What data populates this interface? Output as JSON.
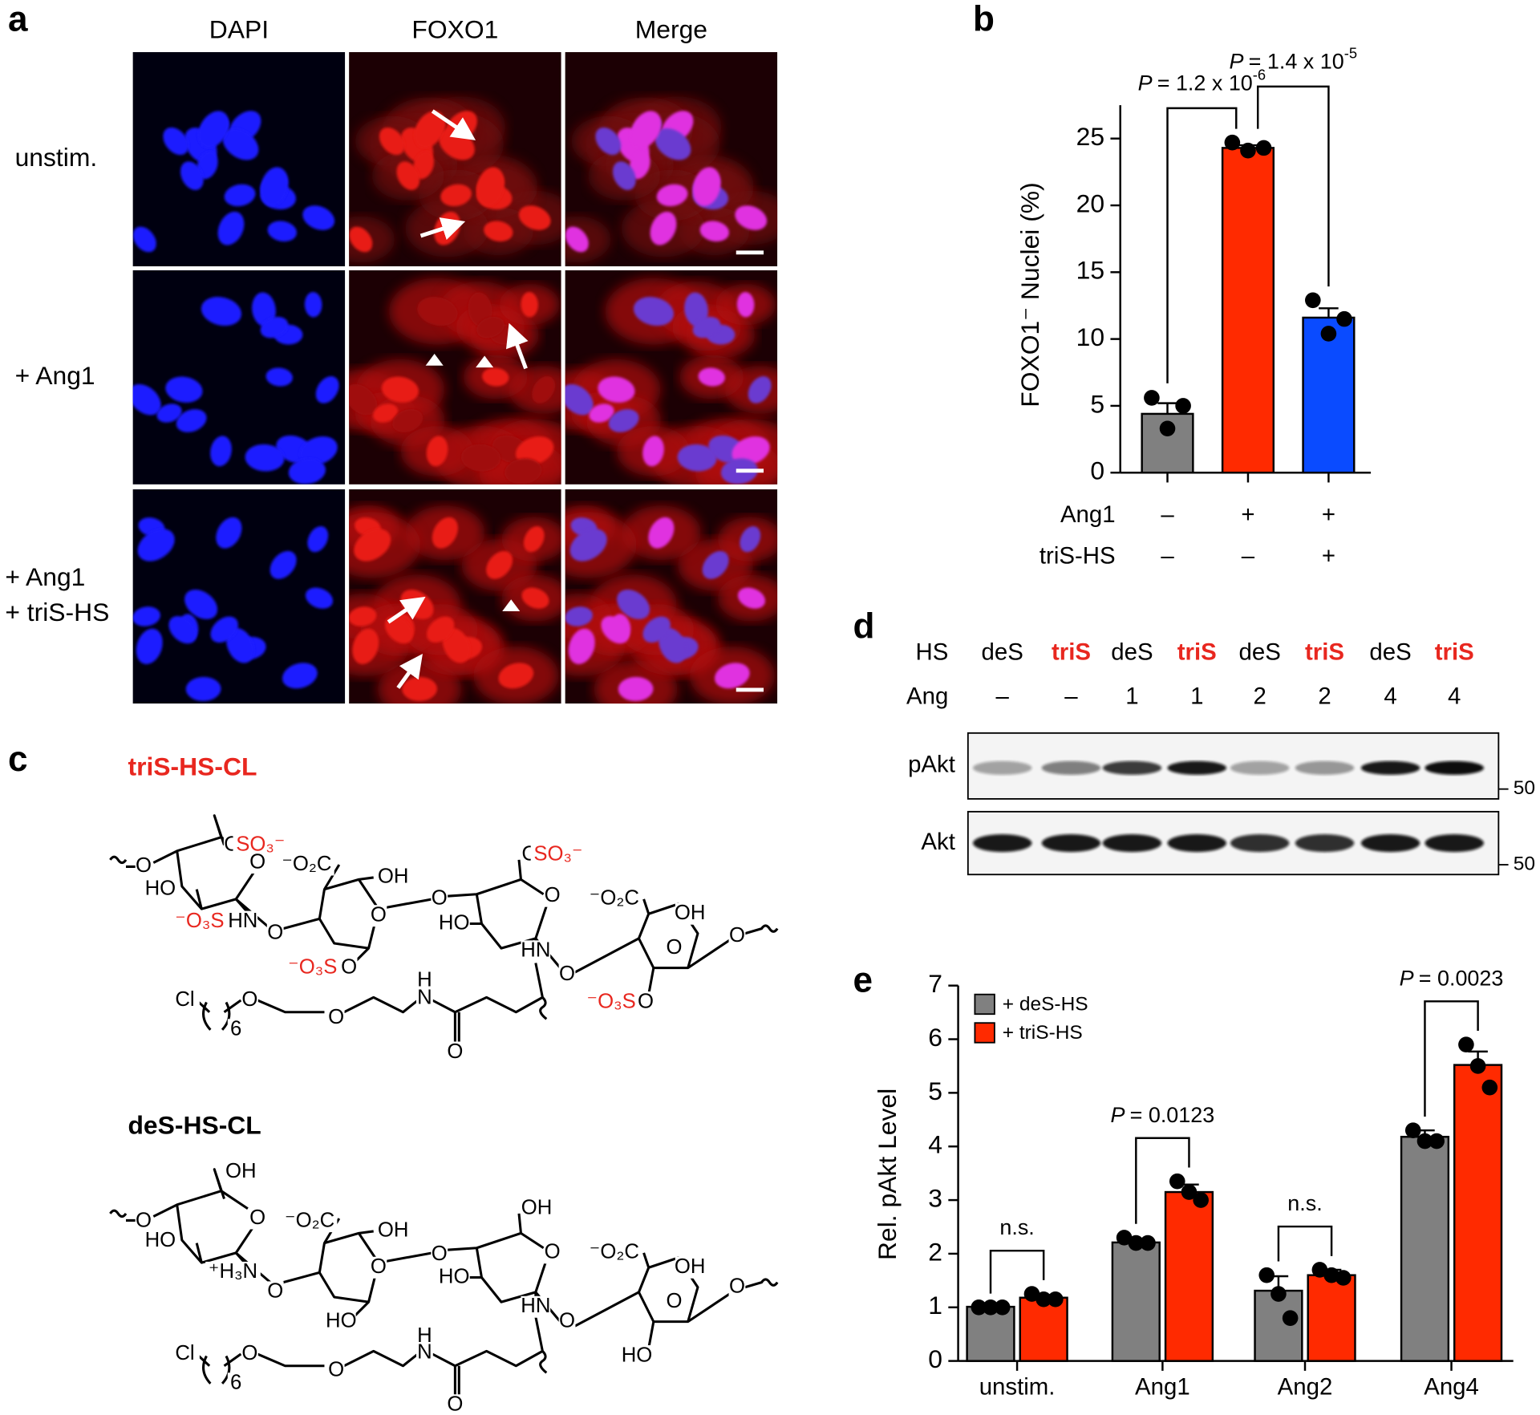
{
  "panel_labels": [
    "a",
    "b",
    "c",
    "d",
    "e"
  ],
  "panel_a": {
    "columns": [
      "DAPI",
      "FOXO1",
      "Merge"
    ],
    "rows": [
      [
        "unstim."
      ],
      [
        "+ Ang1"
      ],
      [
        "+ Ang1",
        "+ triS-HS"
      ]
    ]
  },
  "panel_c": {
    "structures": [
      {
        "name": "triS-HS-CL",
        "name_color": "#e8271f",
        "labels": [
          {
            "text": "O"
          },
          {
            "text": "HO"
          },
          {
            "text": "⁻O₃S",
            "color": "#e8271f"
          },
          {
            "text": "HN"
          },
          {
            "text": "O"
          },
          {
            "text": "SO₃⁻",
            "color": "#e8271f"
          },
          {
            "text": "O"
          },
          {
            "text": "O"
          },
          {
            "text": "⁻O₂C"
          },
          {
            "text": "OH"
          },
          {
            "text": "O"
          },
          {
            "text": "⁻O₃S",
            "color": "#e8271f"
          },
          {
            "text": "O"
          },
          {
            "text": "O"
          },
          {
            "text": "O"
          },
          {
            "text": "SO₃⁻",
            "color": "#e8271f"
          },
          {
            "text": "O"
          },
          {
            "text": "HO"
          },
          {
            "text": "HN"
          },
          {
            "text": "O"
          },
          {
            "text": "⁻O₂C"
          },
          {
            "text": "OH"
          },
          {
            "text": "O"
          },
          {
            "text": "O"
          },
          {
            "text": "⁻O₃S",
            "color": "#e8271f"
          },
          {
            "text": "O"
          },
          {
            "text": "Cl"
          },
          {
            "text": "6"
          },
          {
            "text": "O"
          },
          {
            "text": "O"
          },
          {
            "text": "H"
          },
          {
            "text": "N"
          },
          {
            "text": "O"
          }
        ]
      },
      {
        "name": "deS-HS-CL",
        "name_color": "#000000",
        "labels": [
          {
            "text": "OH"
          },
          {
            "text": "O"
          },
          {
            "text": "HO"
          },
          {
            "text": "⁺H₃N"
          },
          {
            "text": "O"
          },
          {
            "text": "O"
          },
          {
            "text": "⁻O₂C"
          },
          {
            "text": "OH"
          },
          {
            "text": "O"
          },
          {
            "text": "HO"
          },
          {
            "text": "O"
          },
          {
            "text": "OH"
          },
          {
            "text": "O"
          },
          {
            "text": "HO"
          },
          {
            "text": "HN"
          },
          {
            "text": "O"
          },
          {
            "text": "⁻O₂C"
          },
          {
            "text": "OH"
          },
          {
            "text": "O"
          },
          {
            "text": "O"
          },
          {
            "text": "HO"
          },
          {
            "text": "Cl"
          },
          {
            "text": "6"
          },
          {
            "text": "O"
          },
          {
            "text": "O"
          },
          {
            "text": "H"
          },
          {
            "text": "N"
          },
          {
            "text": "O"
          }
        ]
      }
    ]
  },
  "panel_d": {
    "rows": [
      {
        "name": "HS",
        "lanes": [
          {
            "text": "deS",
            "color": "#000000"
          },
          {
            "text": "triS",
            "color": "#e8271f"
          },
          {
            "text": "deS",
            "color": "#000000"
          },
          {
            "text": "triS",
            "color": "#e8271f"
          },
          {
            "text": "deS",
            "color": "#000000"
          },
          {
            "text": "triS",
            "color": "#e8271f"
          },
          {
            "text": "deS",
            "color": "#000000"
          },
          {
            "text": "triS",
            "color": "#e8271f"
          }
        ]
      },
      {
        "name": "Ang",
        "lanes": [
          {
            "text": "–"
          },
          {
            "text": "–"
          },
          {
            "text": "1"
          },
          {
            "text": "1"
          },
          {
            "text": "2"
          },
          {
            "text": "2"
          },
          {
            "text": "4"
          },
          {
            "text": "4"
          }
        ]
      }
    ],
    "blots": [
      {
        "name": "pAkt",
        "marker": "50"
      },
      {
        "name": "Akt",
        "marker": "50"
      }
    ]
  },
  "chart_data": [
    {
      "type": "bar",
      "y_label": "FOXO1⁻ Nuclei (%)",
      "categories": [
        null,
        null,
        null
      ],
      "values": [
        4.4,
        24.3,
        11.6
      ],
      "errors": [
        0.8,
        0.2,
        0.7
      ],
      "points": [
        [
          5.6,
          3.3,
          5.0
        ],
        [
          24.7,
          24.1,
          24.3
        ],
        [
          12.9,
          10.4,
          11.5
        ]
      ],
      "colors": [
        "#808080",
        "#ff2a00",
        "#0a4bff"
      ],
      "ylim": [
        0,
        27.5
      ],
      "yticks": [
        0,
        5,
        10,
        15,
        20,
        25
      ],
      "conditions": [
        {
          "name": "Ang1",
          "values": [
            "–",
            "+",
            "+"
          ]
        },
        {
          "name": "triS-HS",
          "values": [
            "–",
            "–",
            "+"
          ]
        }
      ],
      "comparisons": [
        {
          "from": 0,
          "to": 1,
          "symbol": "P",
          "text": "= 1.2 x 10",
          "exponent": "-6"
        },
        {
          "from": 1,
          "to": 2,
          "symbol": "P",
          "text": "= 1.4 x 10",
          "exponent": "-5"
        }
      ]
    },
    {
      "type": "grouped_bar",
      "y_label": "Rel. pAkt Level",
      "categories": [
        "unstim.",
        "Ang1",
        "Ang2",
        "Ang4"
      ],
      "series": [
        {
          "name": "+ deS-HS",
          "color": "#808080",
          "values": [
            1.01,
            2.21,
            1.31,
            4.18
          ],
          "errors": [
            0.02,
            0.06,
            0.27,
            0.12
          ],
          "points": [
            [
              1.0,
              1.0,
              1.0
            ],
            [
              2.3,
              2.2,
              2.2
            ],
            [
              1.6,
              0.8,
              1.25
            ],
            [
              4.3,
              4.1,
              4.1
            ]
          ]
        },
        {
          "name": "+ triS-HS",
          "color": "#ff2a00",
          "values": [
            1.18,
            3.15,
            1.6,
            5.52
          ],
          "errors": [
            0.05,
            0.14,
            0.1,
            0.25
          ],
          "points": [
            [
              1.25,
              1.15,
              1.15
            ],
            [
              3.35,
              3.0,
              3.15
            ],
            [
              1.7,
              1.55,
              1.6
            ],
            [
              5.9,
              5.1,
              5.5
            ]
          ]
        }
      ],
      "ylim": [
        0,
        7
      ],
      "yticks": [
        0,
        1,
        2,
        3,
        4,
        5,
        6,
        7
      ],
      "legend": "top-left",
      "comparisons": [
        {
          "category": 0,
          "text": "n.s."
        },
        {
          "category": 1,
          "symbol": "P",
          "text": "= 0.0123"
        },
        {
          "category": 2,
          "text": "n.s."
        },
        {
          "category": 3,
          "symbol": "P",
          "text": "= 0.0023"
        }
      ]
    }
  ]
}
